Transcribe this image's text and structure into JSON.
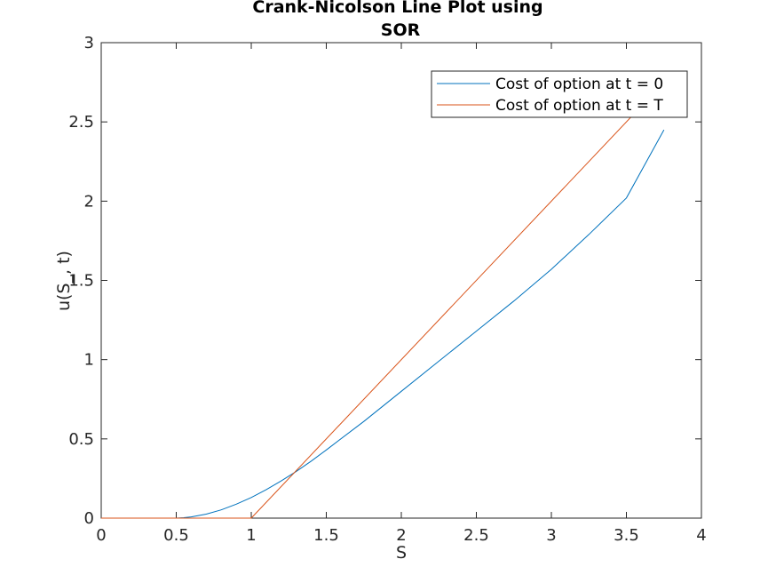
{
  "chart_data": {
    "type": "line",
    "title": [
      "Crank-Nicolson Line Plot using",
      "SOR"
    ],
    "xlabel": "S",
    "ylabel": "u(S_, t)",
    "xlim": [
      0,
      4
    ],
    "ylim": [
      0,
      3
    ],
    "xticks": [
      "0",
      "0.5",
      "1",
      "1.5",
      "2",
      "2.5",
      "3",
      "3.5",
      "4"
    ],
    "yticks": [
      "0",
      "0.5",
      "1",
      "1.5",
      "2",
      "2.5",
      "3"
    ],
    "grid": false,
    "legend_position": "top-right",
    "series": [
      {
        "name": "Cost of option at t = 0",
        "color": "#0072BD",
        "x": [
          0,
          0.5,
          0.55,
          0.6,
          0.7,
          0.8,
          0.9,
          1.0,
          1.1,
          1.2,
          1.3,
          1.4,
          1.5,
          1.75,
          2.0,
          2.25,
          2.5,
          2.75,
          3.0,
          3.25,
          3.5,
          3.75
        ],
        "y": [
          0,
          0,
          0.003,
          0.008,
          0.025,
          0.052,
          0.088,
          0.13,
          0.18,
          0.235,
          0.295,
          0.36,
          0.43,
          0.61,
          0.8,
          0.99,
          1.18,
          1.37,
          1.57,
          1.79,
          2.02,
          2.45
        ]
      },
      {
        "name": "Cost of option at t = T",
        "color": "#D95319",
        "x": [
          0,
          1.0,
          3.56
        ],
        "y": [
          0,
          0,
          2.56
        ]
      }
    ]
  }
}
